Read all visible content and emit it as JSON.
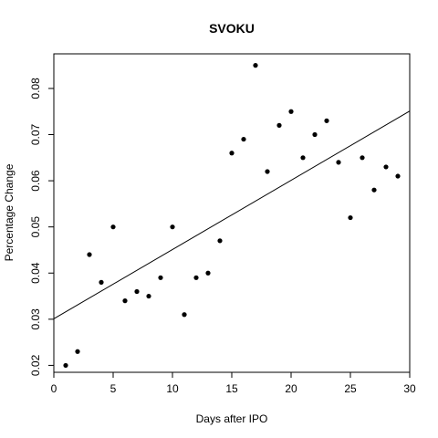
{
  "chart_data": {
    "type": "scatter",
    "title": "SVOKU",
    "xlabel": "Days after IPO",
    "ylabel": "Percentage Change",
    "xlim": [
      0,
      30
    ],
    "ylim": [
      0.0185,
      0.0875
    ],
    "x_ticks": [
      0,
      5,
      10,
      15,
      20,
      25,
      30
    ],
    "x_tick_labels": [
      "0",
      "5",
      "10",
      "15",
      "20",
      "25",
      "30"
    ],
    "y_ticks": [
      0.02,
      0.03,
      0.04,
      0.05,
      0.06,
      0.07,
      0.08
    ],
    "y_tick_labels": [
      "0.02",
      "0.03",
      "0.04",
      "0.05",
      "0.06",
      "0.07",
      "0.08"
    ],
    "grid": false,
    "series": [
      {
        "x": [
          1,
          2,
          3,
          4,
          5,
          6,
          7,
          8,
          9,
          10,
          11,
          12,
          13,
          14,
          15,
          16,
          17,
          18,
          19,
          20,
          21,
          22,
          23,
          24,
          25,
          26,
          27,
          28,
          29
        ],
        "y": [
          0.02,
          0.023,
          0.044,
          0.038,
          0.05,
          0.034,
          0.036,
          0.035,
          0.039,
          0.05,
          0.031,
          0.039,
          0.04,
          0.047,
          0.066,
          0.069,
          0.085,
          0.062,
          0.072,
          0.075,
          0.065,
          0.07,
          0.073,
          0.064,
          0.052,
          0.065,
          0.058,
          0.063,
          0.061
        ]
      }
    ],
    "trendline": {
      "intercept": 0.0301,
      "slope": 0.0015
    }
  }
}
